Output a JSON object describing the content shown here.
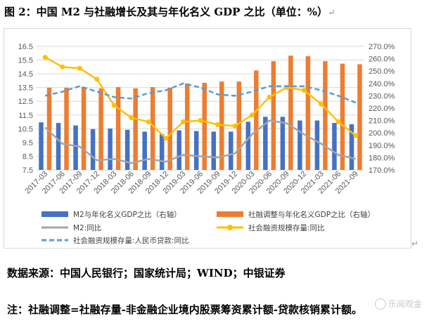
{
  "title": "图 2：中国 M2 与社融增长及其与年化名义 GDP 之比（单位：%）",
  "paragraph_mark": "↵",
  "source_text": "数据来源：中国人民银行；国家统计局；WIND；中银证券",
  "note_text": "注：社融调整=社融存量-非金融企业境内股票筹资累计额-贷款核销累计额。",
  "watermark_text": "乐阅观金",
  "colors": {
    "m2_gdp_bar": "#4472C4",
    "sf_gdp_bar": "#ED7D31",
    "m2_yoy_line": "#A5A5A5",
    "sf_yoy_line": "#FFC000",
    "sf_stock_line": "#5B9BD5"
  },
  "chart_data": {
    "type": "bar",
    "categories": [
      "2017-03",
      "2017-06",
      "2017-09",
      "2017-12",
      "2018-03",
      "2018-06",
      "2018-09",
      "2018-12",
      "2019-03",
      "2019-06",
      "2019-09",
      "2019-12",
      "2020-03",
      "2020-06",
      "2020-09",
      "2020-12",
      "2021-03",
      "2021-06",
      "2021-09"
    ],
    "y_left": {
      "min": 7.5,
      "max": 16.5,
      "ticks": [
        "7.5",
        "8.5",
        "9.5",
        "10.5",
        "11.5",
        "12.5",
        "13.5",
        "14.5",
        "15.5",
        "16.5"
      ]
    },
    "y_right": {
      "min": 170,
      "max": 270,
      "ticks": [
        "170.0%",
        "180.0%",
        "190.0%",
        "200.0%",
        "210.0%",
        "220.0%",
        "230.0%",
        "240.0%",
        "250.0%",
        "260.0%",
        "270.0%"
      ]
    },
    "grid": true,
    "legend_position": "bottom",
    "series": [
      {
        "name": "M2与年化名义GDP之比（右轴）",
        "type": "bar",
        "axis": "right",
        "color": "#4472C4",
        "values": [
          208.5,
          208.0,
          206.0,
          203.0,
          203.5,
          202.5,
          201.0,
          199.0,
          202.0,
          201.5,
          201.0,
          201.0,
          209.0,
          213.0,
          213.0,
          210.0,
          210.0,
          208.0,
          207.0
        ]
      },
      {
        "name": "社融调整与年化名义GDP之比（右轴）",
        "type": "bar",
        "axis": "right",
        "color": "#ED7D31",
        "values": [
          236.5,
          236.5,
          237.0,
          236.0,
          237.0,
          236.0,
          237.0,
          236.5,
          240.0,
          240.5,
          241.5,
          241.5,
          250.5,
          258.0,
          262.5,
          262.0,
          258.0,
          256.0,
          255.5
        ]
      },
      {
        "name": "M2:同比",
        "type": "line",
        "axis": "left",
        "color": "#A5A5A5",
        "values": [
          10.6,
          9.4,
          9.2,
          8.2,
          8.3,
          8.0,
          8.3,
          8.1,
          8.6,
          8.5,
          8.4,
          8.7,
          10.1,
          11.1,
          10.9,
          10.1,
          9.4,
          8.6,
          8.3
        ]
      },
      {
        "name": "社会融资规模存量:同比",
        "type": "line",
        "axis": "left",
        "color": "#FFC000",
        "markers": true,
        "values": [
          15.7,
          15.0,
          14.9,
          14.1,
          12.2,
          11.3,
          11.0,
          9.8,
          11.0,
          11.1,
          10.8,
          10.7,
          11.5,
          12.8,
          13.5,
          13.3,
          12.3,
          11.0,
          10.0
        ]
      },
      {
        "name": "社会融资规模存量:人民币贷款:同比",
        "type": "line",
        "axis": "left",
        "color": "#5B9BD5",
        "dashed": true,
        "values": [
          12.9,
          13.2,
          13.6,
          13.2,
          12.8,
          12.7,
          13.1,
          13.3,
          13.8,
          13.5,
          13.0,
          12.9,
          13.2,
          13.6,
          13.6,
          13.6,
          13.3,
          12.9,
          12.4
        ]
      }
    ]
  }
}
